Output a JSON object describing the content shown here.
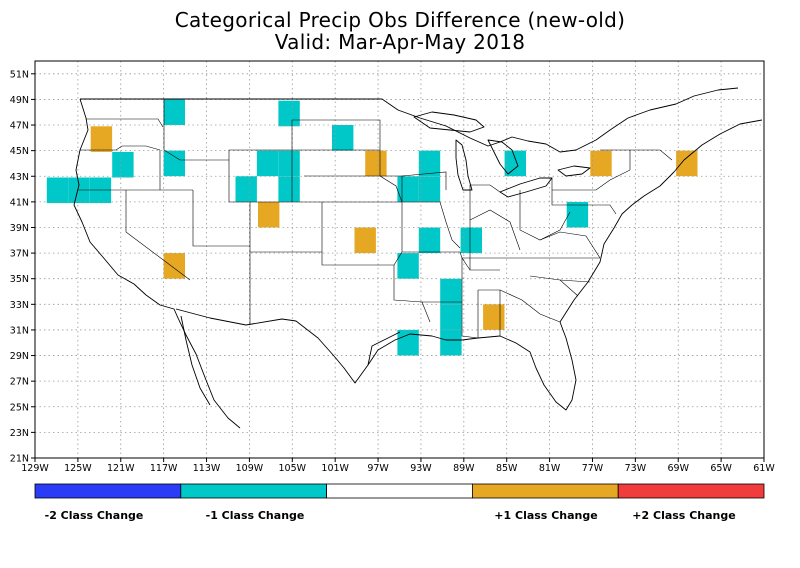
{
  "title": {
    "line1": "Categorical Precip Obs Difference (new-old)",
    "line2": "Valid: Mar-Apr-May 2018"
  },
  "axes": {
    "lon_ticks": [
      "129W",
      "125W",
      "121W",
      "117W",
      "113W",
      "109W",
      "105W",
      "101W",
      "97W",
      "93W",
      "89W",
      "85W",
      "81W",
      "77W",
      "73W",
      "69W",
      "65W",
      "61W"
    ],
    "lat_ticks": [
      "21N",
      "23N",
      "25N",
      "27N",
      "29N",
      "31N",
      "33N",
      "35N",
      "37N",
      "39N",
      "41N",
      "43N",
      "45N",
      "47N",
      "49N",
      "51N"
    ],
    "lon_range": [
      -129,
      -61
    ],
    "lat_range": [
      21,
      52
    ],
    "grid": true
  },
  "colors": {
    "minus2": "#2a3cf5",
    "minus1": "#00c8c8",
    "zero": "#ffffff",
    "plus1": "#e6a823",
    "plus2": "#f03c3c"
  },
  "legend": {
    "labels": [
      "-2 Class Change",
      "-1 Class Change",
      "+1 Class Change",
      "+2 Class Change"
    ]
  },
  "cells": [
    {
      "lon": -126.9,
      "lat": 41.9,
      "cls": -1
    },
    {
      "lon": -124.9,
      "lat": 41.9,
      "cls": -1
    },
    {
      "lon": -122.9,
      "lat": 41.9,
      "cls": -1
    },
    {
      "lon": -120.8,
      "lat": 43.9,
      "cls": -1
    },
    {
      "lon": -122.8,
      "lat": 45.9,
      "cls": 1
    },
    {
      "lon": -116.0,
      "lat": 48.0,
      "cls": -1
    },
    {
      "lon": -116.0,
      "lat": 44.0,
      "cls": -1
    },
    {
      "lon": -105.3,
      "lat": 47.9,
      "cls": -1
    },
    {
      "lon": -107.3,
      "lat": 44.0,
      "cls": -1
    },
    {
      "lon": -105.3,
      "lat": 44.0,
      "cls": -1
    },
    {
      "lon": -109.3,
      "lat": 42.0,
      "cls": -1
    },
    {
      "lon": -105.3,
      "lat": 42.0,
      "cls": -1
    },
    {
      "lon": -107.2,
      "lat": 40.0,
      "cls": 1
    },
    {
      "lon": -116.0,
      "lat": 36.0,
      "cls": 1
    },
    {
      "lon": -100.3,
      "lat": 46.0,
      "cls": -1
    },
    {
      "lon": -97.2,
      "lat": 44.0,
      "cls": 1
    },
    {
      "lon": -98.2,
      "lat": 38.0,
      "cls": 1
    },
    {
      "lon": -92.2,
      "lat": 44.0,
      "cls": -1
    },
    {
      "lon": -94.2,
      "lat": 42.0,
      "cls": -1
    },
    {
      "lon": -92.2,
      "lat": 42.0,
      "cls": -1
    },
    {
      "lon": -92.2,
      "lat": 38.0,
      "cls": -1
    },
    {
      "lon": -94.2,
      "lat": 36.0,
      "cls": -1
    },
    {
      "lon": -88.3,
      "lat": 38.0,
      "cls": -1
    },
    {
      "lon": -90.2,
      "lat": 34.0,
      "cls": -1
    },
    {
      "lon": -90.2,
      "lat": 32.0,
      "cls": -1
    },
    {
      "lon": -90.2,
      "lat": 30.0,
      "cls": -1
    },
    {
      "lon": -94.2,
      "lat": 30.0,
      "cls": -1
    },
    {
      "lon": -86.2,
      "lat": 32.0,
      "cls": 1
    },
    {
      "lon": -84.2,
      "lat": 44.0,
      "cls": -1
    },
    {
      "lon": -78.4,
      "lat": 40.0,
      "cls": -1
    },
    {
      "lon": -76.2,
      "lat": 44.0,
      "cls": 1
    },
    {
      "lon": -68.2,
      "lat": 44.0,
      "cls": 1
    }
  ]
}
